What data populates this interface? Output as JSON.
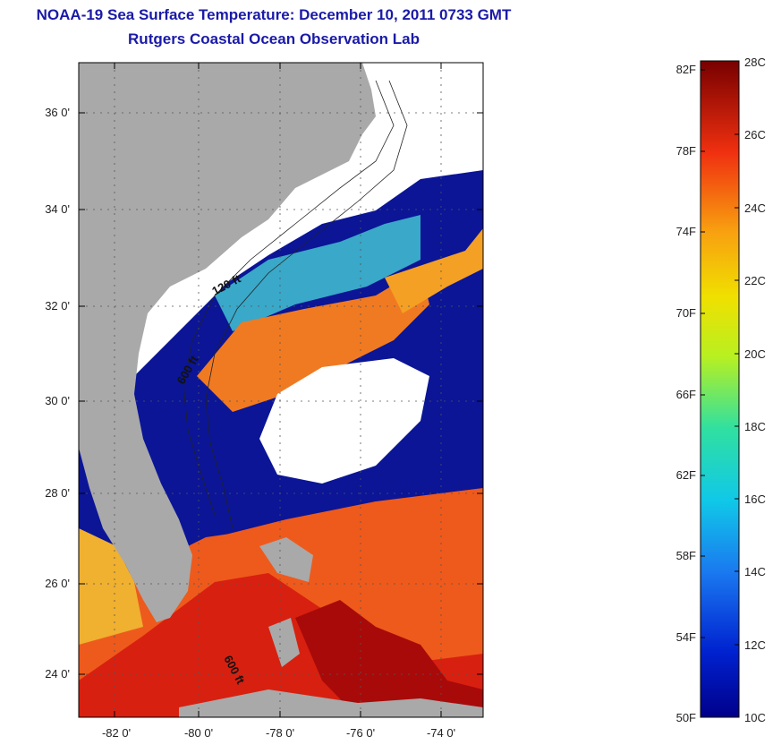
{
  "header": {
    "title": "NOAA-19 Sea Surface Temperature:  December 10, 2011 0733 GMT",
    "subtitle": "Rutgers Coastal Ocean Observation Lab"
  },
  "map": {
    "lat_ticks": [
      "24 0'",
      "26 0'",
      "28 0'",
      "30 0'",
      "32 0'",
      "34 0'",
      "36 0'"
    ],
    "lon_ticks": [
      "-82 0'",
      "-80 0'",
      "-78 0'",
      "-76 0'",
      "-74 0'"
    ],
    "contour_labels": [
      "120 ft",
      "600 ft",
      "600 ft"
    ],
    "colors": {
      "land": "#a9a9a9",
      "cloud": "#ffffff",
      "cold": "#0a0a8c",
      "warm": "#e8301a",
      "hot": "#9a0000"
    }
  },
  "colorbar": {
    "fahrenheit_labels": [
      "82F",
      "78F",
      "74F",
      "70F",
      "66F",
      "62F",
      "58F",
      "54F",
      "50F"
    ],
    "celsius_labels": [
      "28C",
      "26C",
      "24C",
      "22C",
      "20C",
      "18C",
      "16C",
      "14C",
      "12C",
      "10C"
    ],
    "min_c": 10,
    "max_c": 28
  }
}
